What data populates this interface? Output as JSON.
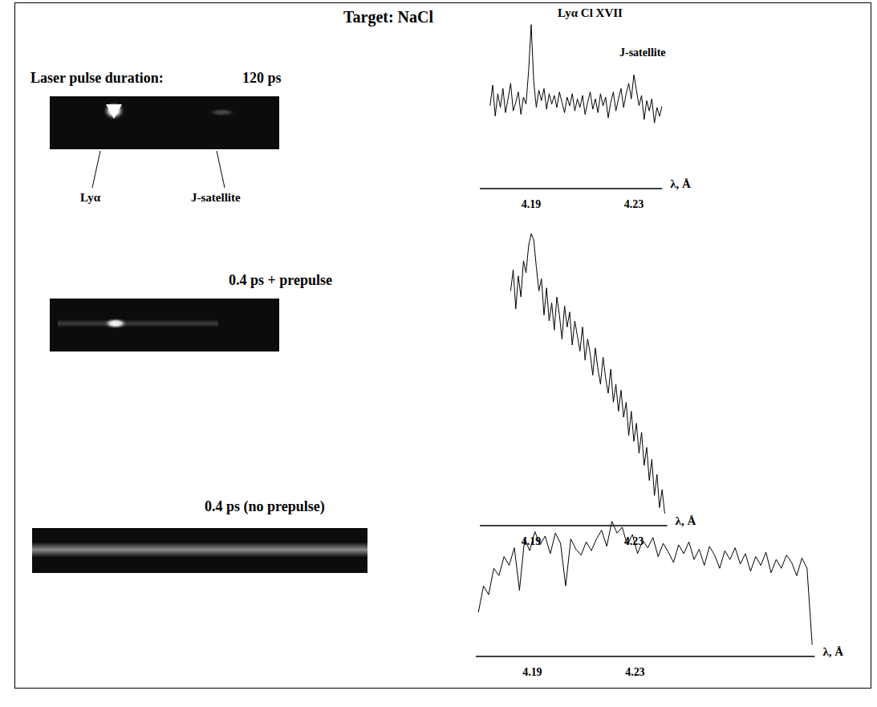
{
  "title": "Target: NaCl",
  "header": "Laser pulse duration:",
  "panels": [
    {
      "label": "120 ps",
      "image_labels": [
        "Lyα",
        "J-satellite"
      ]
    },
    {
      "label": "0.4 ps + prepulse"
    },
    {
      "label": "0.4 ps (no prepulse)"
    }
  ],
  "chart_data": [
    {
      "type": "line",
      "color": "#000000",
      "x_label": "λ, Å",
      "annotations": [
        "Lyα Cl XVII",
        "J-satellite"
      ],
      "tick_labels": "x",
      "xlim": [
        4.17,
        4.241
      ],
      "xticks": [
        4.19,
        4.23
      ],
      "ylim": [
        0,
        100
      ],
      "x": [
        4.174,
        4.175,
        4.176,
        4.177,
        4.178,
        4.179,
        4.18,
        4.181,
        4.182,
        4.183,
        4.184,
        4.185,
        4.186,
        4.187,
        4.188,
        4.189,
        4.19,
        4.191,
        4.192,
        4.193,
        4.194,
        4.195,
        4.196,
        4.197,
        4.198,
        4.199,
        4.2,
        4.201,
        4.202,
        4.203,
        4.204,
        4.205,
        4.206,
        4.207,
        4.208,
        4.209,
        4.21,
        4.211,
        4.212,
        4.213,
        4.214,
        4.215,
        4.216,
        4.217,
        4.218,
        4.219,
        4.22,
        4.221,
        4.222,
        4.223,
        4.224,
        4.225,
        4.226,
        4.227,
        4.228,
        4.229,
        4.23,
        4.231,
        4.232,
        4.233,
        4.234,
        4.235,
        4.236,
        4.237,
        4.238,
        4.239,
        4.24,
        4.241
      ],
      "values": [
        48,
        60,
        42,
        55,
        47,
        58,
        44,
        52,
        61,
        45,
        50,
        56,
        43,
        53,
        49,
        68,
        95,
        62,
        47,
        57,
        51,
        58,
        46,
        55,
        49,
        54,
        47,
        56,
        50,
        44,
        53,
        48,
        55,
        45,
        52,
        47,
        54,
        43,
        50,
        56,
        46,
        52,
        44,
        55,
        48,
        53,
        41,
        50,
        56,
        45,
        52,
        58,
        47,
        55,
        61,
        52,
        66,
        57,
        48,
        54,
        40,
        51,
        45,
        52,
        38,
        47,
        42,
        48
      ]
    },
    {
      "type": "line",
      "color": "#000000",
      "x_label": "λ, Å",
      "tick_labels": "x",
      "xlim": [
        4.17,
        4.243
      ],
      "xticks": [
        4.19,
        4.23
      ],
      "ylim": [
        0,
        100
      ],
      "x": [
        4.182,
        4.183,
        4.184,
        4.185,
        4.186,
        4.187,
        4.188,
        4.189,
        4.19,
        4.191,
        4.192,
        4.193,
        4.194,
        4.195,
        4.196,
        4.197,
        4.198,
        4.199,
        4.2,
        4.201,
        4.202,
        4.203,
        4.204,
        4.205,
        4.206,
        4.207,
        4.208,
        4.209,
        4.21,
        4.211,
        4.212,
        4.213,
        4.214,
        4.215,
        4.216,
        4.217,
        4.218,
        4.219,
        4.22,
        4.221,
        4.222,
        4.223,
        4.224,
        4.225,
        4.226,
        4.227,
        4.228,
        4.229,
        4.23,
        4.231,
        4.232,
        4.233,
        4.234,
        4.235,
        4.236,
        4.237,
        4.238,
        4.239,
        4.24,
        4.241,
        4.242
      ],
      "values": [
        78,
        85,
        72,
        83,
        76,
        88,
        84,
        93,
        97,
        95,
        86,
        78,
        82,
        70,
        79,
        68,
        74,
        65,
        76,
        70,
        62,
        73,
        66,
        71,
        60,
        68,
        63,
        58,
        66,
        55,
        62,
        57,
        50,
        59,
        52,
        47,
        56,
        49,
        44,
        52,
        41,
        47,
        38,
        45,
        36,
        41,
        30,
        38,
        28,
        34,
        24,
        31,
        20,
        26,
        15,
        22,
        10,
        17,
        6,
        12,
        4
      ]
    },
    {
      "type": "line",
      "color": "#000000",
      "x_label": "λ, Å",
      "tick_labels": "x",
      "xlim": [
        4.168,
        4.3
      ],
      "xticks": [
        4.19,
        4.23
      ],
      "ylim": [
        0,
        100
      ],
      "x": [
        4.169,
        4.171,
        4.173,
        4.175,
        4.177,
        4.179,
        4.181,
        4.183,
        4.185,
        4.187,
        4.189,
        4.191,
        4.193,
        4.195,
        4.197,
        4.199,
        4.201,
        4.203,
        4.205,
        4.207,
        4.209,
        4.211,
        4.213,
        4.215,
        4.217,
        4.219,
        4.221,
        4.223,
        4.225,
        4.227,
        4.229,
        4.231,
        4.233,
        4.235,
        4.237,
        4.239,
        4.241,
        4.243,
        4.245,
        4.247,
        4.249,
        4.251,
        4.253,
        4.255,
        4.257,
        4.259,
        4.261,
        4.263,
        4.265,
        4.267,
        4.269,
        4.271,
        4.273,
        4.275,
        4.277,
        4.279,
        4.281,
        4.283,
        4.285,
        4.287,
        4.289,
        4.291,
        4.293,
        4.295,
        4.297,
        4.299
      ],
      "values": [
        30,
        48,
        42,
        60,
        55,
        68,
        62,
        74,
        45,
        80,
        72,
        85,
        76,
        82,
        70,
        84,
        77,
        48,
        80,
        73,
        69,
        78,
        72,
        80,
        86,
        75,
        92,
        84,
        88,
        76,
        83,
        70,
        79,
        74,
        81,
        68,
        77,
        71,
        64,
        76,
        70,
        78,
        66,
        73,
        62,
        75,
        69,
        60,
        72,
        66,
        74,
        63,
        70,
        58,
        68,
        62,
        71,
        57,
        66,
        60,
        69,
        64,
        55,
        67,
        60,
        8
      ]
    }
  ]
}
